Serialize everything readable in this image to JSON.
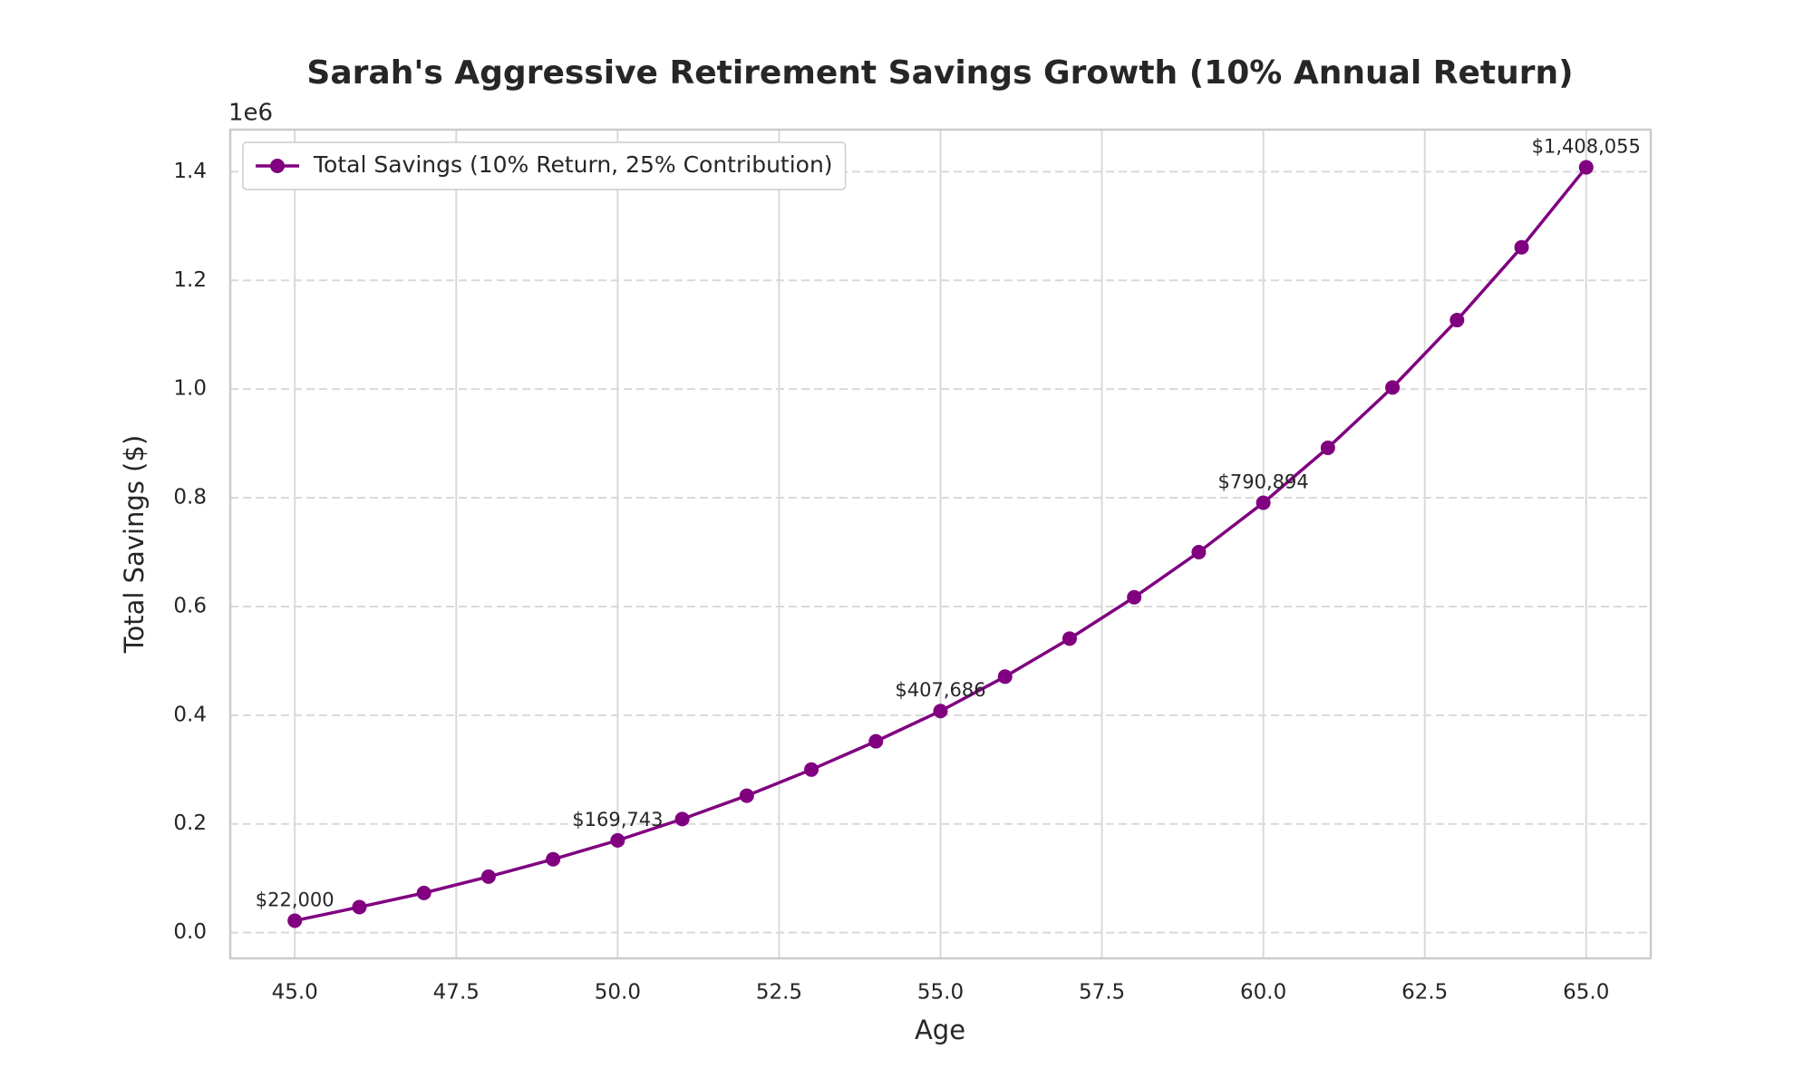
{
  "chart_data": {
    "type": "line",
    "title": "Sarah's Aggressive Retirement Savings Growth (10% Annual Return)",
    "x_label": "Age",
    "y_label": "Total Savings ($)",
    "y_offset_label": "1e6",
    "x": [
      45,
      46,
      47,
      48,
      49,
      50,
      51,
      52,
      53,
      54,
      55,
      56,
      57,
      58,
      59,
      60,
      61,
      62,
      63,
      64,
      65
    ],
    "series": [
      {
        "name": "Total Savings (10% Return, 25% Contribution)",
        "color": "#800080",
        "values": [
          22000,
          47000,
          73000,
          103000,
          135000,
          169743,
          209000,
          252000,
          300000,
          352000,
          407686,
          471000,
          541000,
          617000,
          700000,
          790894,
          892000,
          1003000,
          1127000,
          1261000,
          1408055
        ],
        "value_labels": [
          "$22,000",
          null,
          null,
          null,
          null,
          "$169,743",
          null,
          null,
          null,
          null,
          "$407,686",
          null,
          null,
          null,
          null,
          "$790,894",
          null,
          null,
          null,
          null,
          "$1,408,055"
        ]
      }
    ],
    "xlim": [
      44,
      66
    ],
    "xticks": [
      {
        "value": 45,
        "label": "45.0"
      },
      {
        "value": 47.5,
        "label": "47.5"
      },
      {
        "value": 50,
        "label": "50.0"
      },
      {
        "value": 52.5,
        "label": "52.5"
      },
      {
        "value": 55,
        "label": "55.0"
      },
      {
        "value": 57.5,
        "label": "57.5"
      },
      {
        "value": 60,
        "label": "60.0"
      },
      {
        "value": 62.5,
        "label": "62.5"
      },
      {
        "value": 65,
        "label": "65.0"
      }
    ],
    "ylim": [
      -47303,
      1477358
    ],
    "yticks": [
      {
        "value": 0,
        "label": "0.0"
      },
      {
        "value": 200000,
        "label": "0.2"
      },
      {
        "value": 400000,
        "label": "0.4"
      },
      {
        "value": 600000,
        "label": "0.6"
      },
      {
        "value": 800000,
        "label": "0.8"
      },
      {
        "value": 1000000,
        "label": "1.0"
      },
      {
        "value": 1200000,
        "label": "1.2"
      },
      {
        "value": 1400000,
        "label": "1.4"
      }
    ],
    "grid": true,
    "legend": "upper left"
  }
}
